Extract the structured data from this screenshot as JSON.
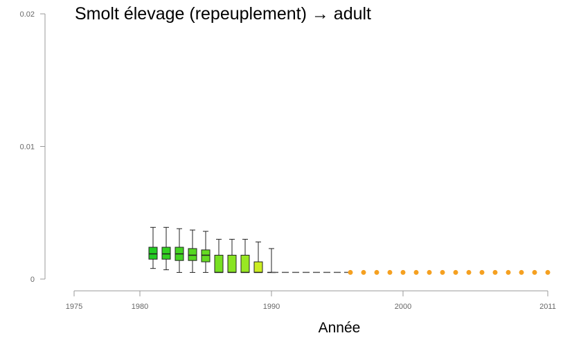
{
  "chart_data": {
    "type": "box",
    "title": "Smolt élevage (repeuplement) → adult",
    "xlabel": "Année",
    "xlim": [
      1975,
      2011
    ],
    "xticks": [
      1975,
      1980,
      1990,
      2000,
      2011
    ],
    "ylim": [
      0,
      0.02
    ],
    "yticks": [
      0,
      0.01,
      0.02
    ],
    "boxes": [
      {
        "x": 1981,
        "min": 0.0008,
        "q1": 0.0015,
        "median": 0.0019,
        "q3": 0.0024,
        "max": 0.0039,
        "color": "#22cc22"
      },
      {
        "x": 1982,
        "min": 0.0007,
        "q1": 0.0015,
        "median": 0.0019,
        "q3": 0.0024,
        "max": 0.0039,
        "color": "#33d022"
      },
      {
        "x": 1983,
        "min": 0.0005,
        "q1": 0.0014,
        "median": 0.0019,
        "q3": 0.0024,
        "max": 0.0038,
        "color": "#44d422"
      },
      {
        "x": 1984,
        "min": 0.0005,
        "q1": 0.0014,
        "median": 0.0018,
        "q3": 0.0023,
        "max": 0.0037,
        "color": "#55d822"
      },
      {
        "x": 1985,
        "min": 0.0005,
        "q1": 0.0013,
        "median": 0.0018,
        "q3": 0.0022,
        "max": 0.0036,
        "color": "#66dc22"
      },
      {
        "x": 1986,
        "min": 0.0005,
        "q1": 0.0005,
        "median": 0.0005,
        "q3": 0.0018,
        "max": 0.003,
        "color": "#77e022"
      },
      {
        "x": 1987,
        "min": 0.0005,
        "q1": 0.0005,
        "median": 0.0005,
        "q3": 0.0018,
        "max": 0.003,
        "color": "#88e422"
      },
      {
        "x": 1988,
        "min": 0.0005,
        "q1": 0.0005,
        "median": 0.0005,
        "q3": 0.0018,
        "max": 0.003,
        "color": "#99e822"
      },
      {
        "x": 1989,
        "min": 0.0005,
        "q1": 0.0005,
        "median": 0.0005,
        "q3": 0.0013,
        "max": 0.0028,
        "color": "#ccee22"
      },
      {
        "x": 1990,
        "min": 0.0005,
        "q1": 0.0005,
        "median": 0.0005,
        "q3": 0.0005,
        "max": 0.0023,
        "color": "#555555"
      }
    ],
    "line": {
      "x": [
        1990,
        1991,
        1992,
        1993,
        1994,
        1995,
        1996
      ],
      "values": [
        0.0005,
        0.0005,
        0.0005,
        0.0005,
        0.0005,
        0.0005,
        0.0005
      ],
      "color": "#555555"
    },
    "points": {
      "x": [
        1996,
        1997,
        1998,
        1999,
        2000,
        2001,
        2002,
        2003,
        2004,
        2005,
        2006,
        2007,
        2008,
        2009,
        2010,
        2011
      ],
      "values": [
        0.0005,
        0.0005,
        0.0005,
        0.0005,
        0.0005,
        0.0005,
        0.0005,
        0.0005,
        0.0005,
        0.0005,
        0.0005,
        0.0005,
        0.0005,
        0.0005,
        0.0005,
        0.0005
      ],
      "color": "#f5a020"
    }
  }
}
